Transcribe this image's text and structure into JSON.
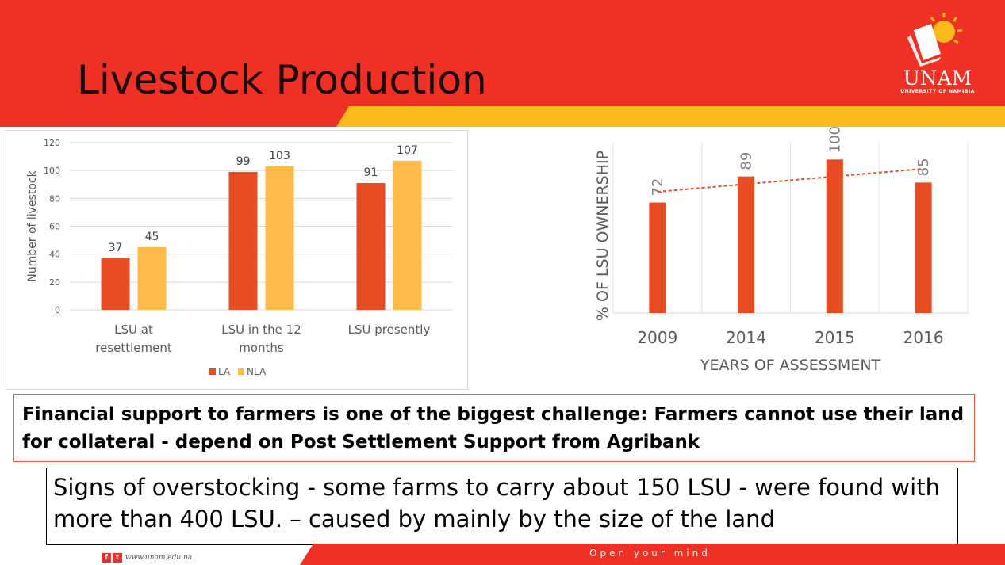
{
  "slide": {
    "title": "Livestock Production",
    "logo": {
      "name": "UNAM",
      "subtitle": "UNIVERSITY OF NAMIBIA"
    },
    "callout_financial": "Financial support to farmers is one of the biggest challenge: Farmers cannot use their land for collateral - depend on Post Settlement Support from Agribank",
    "callout_overstocking": "Signs of overstocking - some farms to carry about 150 LSU - were found with more than 400 LSU. – caused by mainly by the size of the land",
    "footer": {
      "url": "www.unam.edu.na",
      "slogan": "Open your mind"
    },
    "colors": {
      "red": "#ee3124",
      "yellow": "#fbbc1b",
      "bar_red": "#e84c22",
      "bar_yellow": "#fdb94a"
    }
  },
  "chart_data": [
    {
      "type": "bar",
      "title": "",
      "xlabel": "",
      "ylabel": "Number of livestock",
      "ylim": [
        0,
        120
      ],
      "yticks": [
        0,
        20,
        40,
        60,
        80,
        100,
        120
      ],
      "categories": [
        "LSU at resettlement",
        "LSU in the 12 months",
        "LSU presently"
      ],
      "series": [
        {
          "name": "LA",
          "values": [
            37,
            99,
            91
          ],
          "color": "#e84c22"
        },
        {
          "name": "NLA",
          "values": [
            45,
            103,
            107
          ],
          "color": "#fdb94a"
        }
      ],
      "legend": "bottom",
      "grid": true
    },
    {
      "type": "bar",
      "title": "",
      "xlabel": "YEARS OF ASSESSMENT",
      "ylabel": "% OF LSU OWNERSHIP",
      "ylim": [
        0,
        100
      ],
      "categories": [
        "2009",
        "2014",
        "2015",
        "2016"
      ],
      "series": [
        {
          "values": [
            72,
            89,
            100,
            85
          ],
          "color": "#e84c22"
        }
      ],
      "trendline": {
        "type": "linear",
        "style": "dashed",
        "color": "#e84c22"
      },
      "grid": "vertical"
    }
  ]
}
